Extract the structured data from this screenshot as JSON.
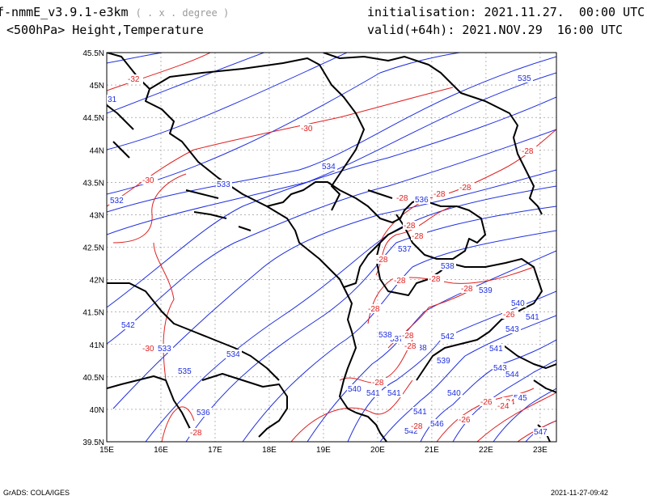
{
  "header": {
    "model": "f-nmmE_v3.9.1-e3km",
    "coords_note": "( . x . degree )",
    "field": "<500hPa> Height,Temperature",
    "init_label": "initialisation:",
    "init_value": "2021.11.27.  00:00 UTC",
    "valid_label": "valid(+64h):",
    "valid_value": "2021.NOV.29  16:00 UTC"
  },
  "axes": {
    "lat_ticks": [
      "45.5N",
      "45N",
      "44.5N",
      "44N",
      "43.5N",
      "43N",
      "42.5N",
      "42N",
      "41.5N",
      "41N",
      "40.5N",
      "40N",
      "39.5N"
    ],
    "lon_ticks": [
      "15E",
      "16E",
      "17E",
      "18E",
      "19E",
      "20E",
      "21E",
      "22E",
      "23E"
    ]
  },
  "map": {
    "extent": {
      "lon": [
        15,
        23.3
      ],
      "lat": [
        39.5,
        45.5
      ]
    },
    "height_color": "#1f2fe0",
    "temp_color": "#e02020",
    "border_color": "#000000",
    "grid_color": "#888888",
    "height_contours": [
      "531",
      "532",
      "533",
      "534",
      "535",
      "536",
      "537",
      "538",
      "539",
      "540",
      "541",
      "542",
      "543",
      "544",
      "545",
      "546",
      "547"
    ],
    "temp_contours": [
      "-32",
      "-30",
      "-28",
      "-26",
      "-24"
    ],
    "height_labels": [
      "535",
      "31",
      "534",
      "533",
      "532",
      "536",
      "537",
      "538",
      "539",
      "540",
      "541",
      "542",
      "533",
      "534",
      "535",
      "536",
      "537",
      "538",
      "539",
      "540",
      "541",
      "541",
      "542",
      "541",
      "540",
      "543",
      "544",
      "545",
      "541",
      "542",
      "546",
      "547",
      "543",
      "538"
    ],
    "temp_labels": [
      "-32",
      "-30",
      "-30",
      "-28",
      "-28",
      "-28",
      "-28",
      "-28",
      "-28",
      "-28",
      "-28",
      "-28",
      "-28",
      "-28",
      "-30",
      "-28",
      "-28",
      "-26",
      "-26",
      "-24",
      "-26",
      "-24",
      "-28",
      "-28",
      "-28"
    ]
  },
  "footer": {
    "left": "GrADS: COLA/IGES",
    "right": "2021-11-27-09:42"
  }
}
